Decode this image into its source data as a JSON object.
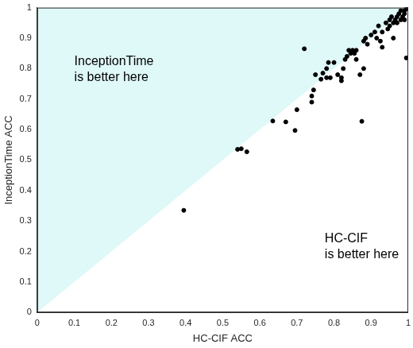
{
  "chart_data": {
    "type": "scatter",
    "x_label": "HC-CIF ACC",
    "y_label": "InceptionTime ACC",
    "annotations": [
      {
        "text": [
          "InceptionTime",
          "is better here"
        ]
      },
      {
        "text": [
          "HC-CIF",
          "is better here"
        ]
      }
    ],
    "x": [
      0.395,
      0.54,
      0.55,
      0.565,
      0.635,
      0.67,
      0.695,
      0.7,
      0.72,
      0.74,
      0.74,
      0.745,
      0.75,
      0.765,
      0.77,
      0.78,
      0.78,
      0.785,
      0.79,
      0.8,
      0.81,
      0.82,
      0.82,
      0.825,
      0.83,
      0.835,
      0.84,
      0.845,
      0.85,
      0.855,
      0.86,
      0.86,
      0.87,
      0.875,
      0.88,
      0.88,
      0.885,
      0.89,
      0.9,
      0.91,
      0.915,
      0.92,
      0.925,
      0.93,
      0.93,
      0.94,
      0.945,
      0.95,
      0.95,
      0.955,
      0.96,
      0.96,
      0.965,
      0.97,
      0.97,
      0.975,
      0.98,
      0.98,
      0.985,
      0.99,
      0.99,
      0.99,
      0.995,
      0.995,
      1.0,
      1.0
    ],
    "values": [
      0.335,
      0.535,
      0.537,
      0.527,
      0.628,
      0.625,
      0.597,
      0.665,
      0.865,
      0.69,
      0.71,
      0.73,
      0.78,
      0.765,
      0.785,
      0.8,
      0.77,
      0.82,
      0.77,
      0.82,
      0.78,
      0.77,
      0.76,
      0.8,
      0.83,
      0.84,
      0.86,
      0.85,
      0.86,
      0.85,
      0.83,
      0.86,
      0.78,
      0.627,
      0.8,
      0.89,
      0.9,
      0.88,
      0.91,
      0.92,
      0.9,
      0.94,
      0.89,
      0.92,
      0.87,
      0.95,
      0.93,
      0.96,
      0.94,
      0.97,
      0.95,
      0.9,
      0.96,
      0.97,
      0.95,
      0.98,
      0.96,
      0.99,
      0.97,
      0.99,
      0.98,
      0.96,
      1.0,
      0.835,
      0.995,
      1.0
    ],
    "color": "#000000",
    "marker": "circle",
    "xlim": [
      0,
      1
    ],
    "ylim": [
      0,
      1
    ],
    "xticks": [
      0,
      0.1,
      0.2,
      0.3,
      0.4,
      0.5,
      0.6,
      0.7,
      0.8,
      0.9,
      1
    ],
    "yticks": [
      0,
      0.1,
      0.2,
      0.3,
      0.4,
      0.5,
      0.6,
      0.7,
      0.8,
      0.9,
      1
    ],
    "grid": false
  }
}
